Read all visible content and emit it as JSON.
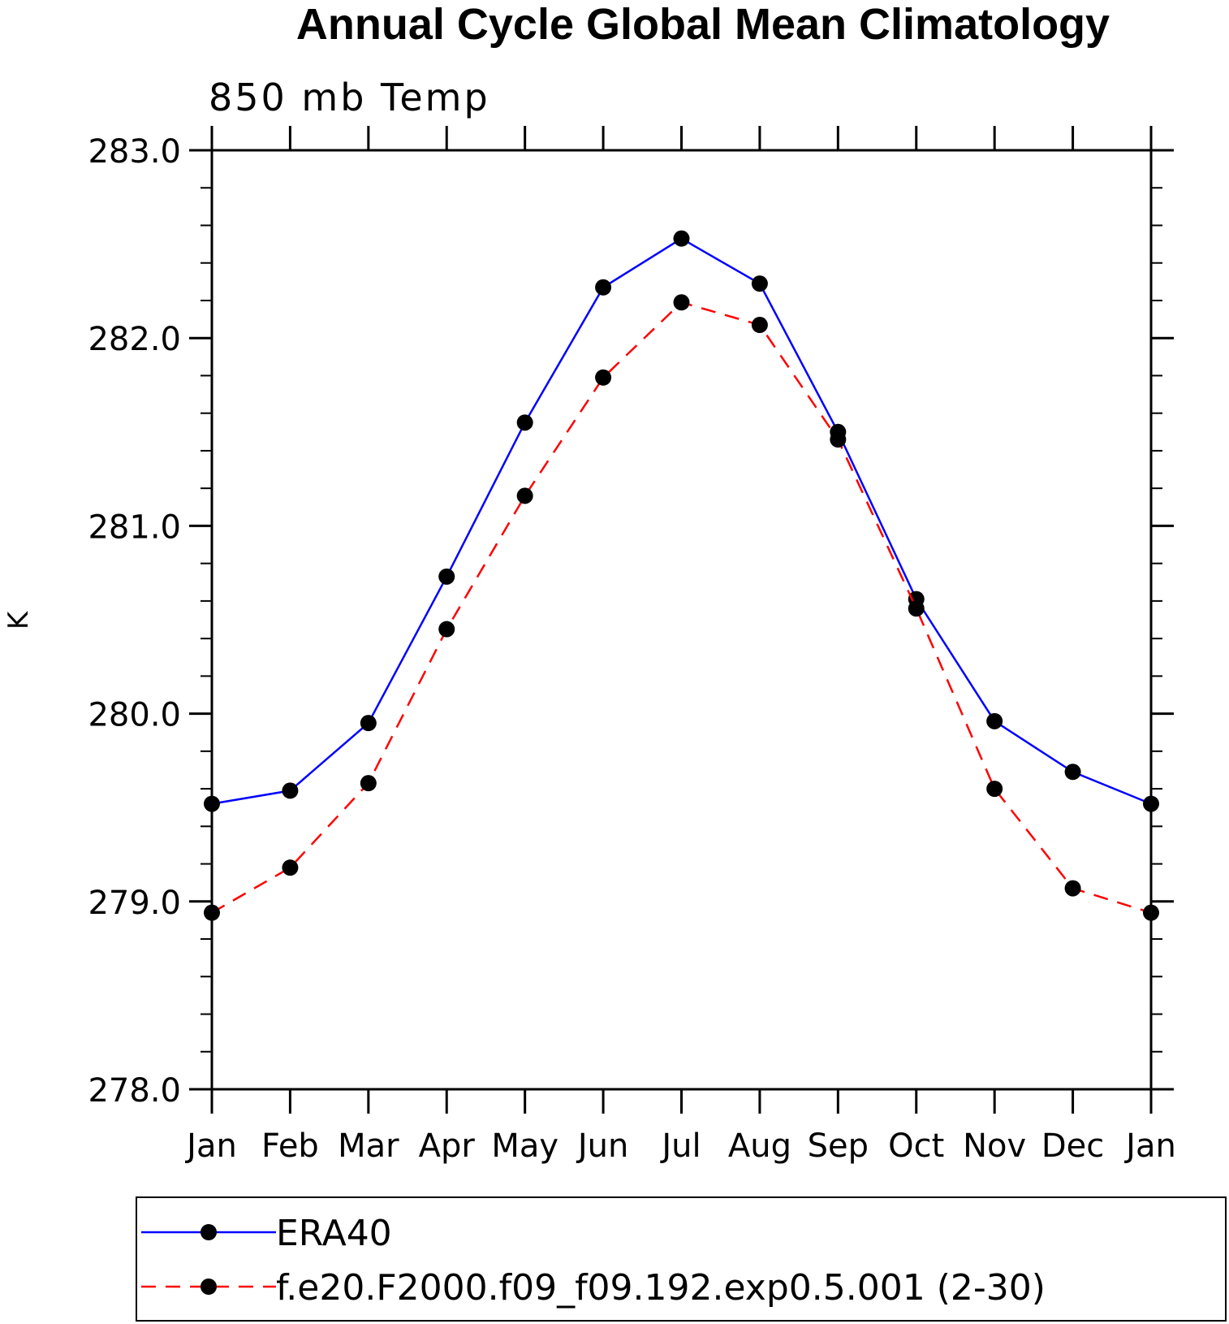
{
  "chart_data": {
    "type": "line",
    "title": "Annual Cycle Global Mean Climatology",
    "subtitle": "850 mb Temp",
    "xlabel": "",
    "ylabel": "K",
    "categories": [
      "Jan",
      "Feb",
      "Mar",
      "Apr",
      "May",
      "Jun",
      "Jul",
      "Aug",
      "Sep",
      "Oct",
      "Nov",
      "Dec",
      "Jan"
    ],
    "ylim": [
      278.0,
      283.0
    ],
    "yticks": [
      "278.0",
      "279.0",
      "280.0",
      "281.0",
      "282.0",
      "283.0"
    ],
    "y_minor_step": 0.2,
    "legend_position": "bottom",
    "series": [
      {
        "name": "ERA40",
        "color": "#0000ff",
        "dash": "solid",
        "values": [
          279.52,
          279.59,
          279.95,
          280.73,
          281.55,
          282.27,
          282.53,
          282.29,
          281.5,
          280.61,
          279.96,
          279.69,
          279.52
        ]
      },
      {
        "name": "f.e20.F2000.f09_f09.192.exp0.5.001 (2-30)",
        "color": "#ff0000",
        "dash": "dashed",
        "values": [
          278.94,
          279.18,
          279.63,
          280.45,
          281.16,
          281.79,
          282.19,
          282.07,
          281.46,
          280.56,
          279.6,
          279.07,
          278.94
        ]
      }
    ]
  }
}
